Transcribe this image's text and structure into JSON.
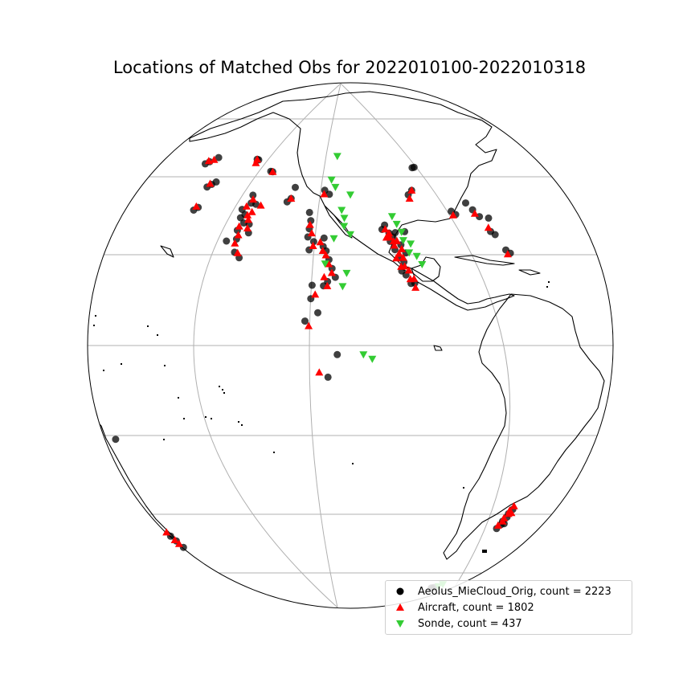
{
  "chart_data": {
    "type": "scatter",
    "title": "Locations of Matched Obs for 2022010100-2022010318",
    "projection": "orthographic",
    "center": {
      "lon": -90,
      "lat": 20
    },
    "graticule": {
      "parallels": [
        -60,
        -40,
        -20,
        0,
        20,
        40,
        60
      ],
      "meridians": [
        -120,
        -60
      ]
    },
    "legend_placement": "lower-right",
    "series": [
      {
        "name": "Aeolus_MieCloud_Orig, count = 2223",
        "marker": "circle",
        "color": "#000000",
        "points": [
          [
            -160,
            54
          ],
          [
            -159,
            55
          ],
          [
            -157,
            57
          ],
          [
            -148,
            50
          ],
          [
            -147,
            51
          ],
          [
            -146,
            52
          ],
          [
            -146,
            44
          ],
          [
            -145,
            45
          ],
          [
            -137,
            61
          ],
          [
            -136,
            61
          ],
          [
            -126,
            59
          ],
          [
            -125,
            59
          ],
          [
            -127,
            52
          ],
          [
            -126,
            50
          ],
          [
            -128,
            48
          ],
          [
            -127,
            46
          ],
          [
            -125,
            45
          ],
          [
            -126,
            43
          ],
          [
            -125,
            41
          ],
          [
            -128,
            40
          ],
          [
            -123,
            45
          ],
          [
            -122,
            43
          ],
          [
            -126,
            47
          ],
          [
            -124,
            50
          ],
          [
            -124,
            38
          ],
          [
            -122,
            37
          ],
          [
            -112,
            53
          ],
          [
            -113,
            52
          ],
          [
            -112,
            56
          ],
          [
            -100,
            56
          ],
          [
            -98,
            55
          ],
          [
            -104,
            50
          ],
          [
            -103,
            48
          ],
          [
            -103,
            46
          ],
          [
            -103,
            44
          ],
          [
            -102,
            41
          ],
          [
            -101,
            43
          ],
          [
            -98,
            44
          ],
          [
            -98,
            42
          ],
          [
            -97,
            41
          ],
          [
            -96,
            39
          ],
          [
            -95,
            37
          ],
          [
            -94,
            35
          ],
          [
            -96,
            34
          ],
          [
            -97,
            33
          ],
          [
            -100,
            30
          ],
          [
            -98,
            27
          ],
          [
            -100,
            33
          ],
          [
            -101,
            25
          ],
          [
            -93,
            18
          ],
          [
            -95,
            13
          ],
          [
            -78,
            45
          ],
          [
            -77,
            44
          ],
          [
            -78,
            43
          ],
          [
            -77,
            41
          ],
          [
            -76,
            39
          ],
          [
            -75,
            38
          ],
          [
            -76,
            36
          ],
          [
            -75,
            35
          ],
          [
            -74,
            33
          ],
          [
            -73,
            33
          ],
          [
            -74,
            40
          ],
          [
            -75,
            42
          ],
          [
            -80,
            46
          ],
          [
            -79,
            47
          ],
          [
            -76,
            45
          ],
          [
            -73,
            45
          ],
          [
            -68,
            54
          ],
          [
            -66,
            55
          ],
          [
            -55,
            48
          ],
          [
            -54,
            47
          ],
          [
            -48,
            49
          ],
          [
            -47,
            47
          ],
          [
            -46,
            45
          ],
          [
            -43,
            44
          ],
          [
            -45,
            41
          ],
          [
            -44,
            40
          ],
          [
            -42,
            35
          ],
          [
            -43,
            36
          ],
          [
            -61,
            61
          ],
          [
            -60,
            61
          ],
          [
            -47,
            -25
          ],
          [
            -48,
            -26
          ],
          [
            -48,
            -27
          ],
          [
            -49,
            -28
          ],
          [
            -49,
            -29
          ],
          [
            -50,
            -30
          ],
          [
            -48,
            -29
          ],
          [
            -60,
            -52
          ],
          [
            -59,
            -52
          ],
          [
            -157,
            -14
          ],
          [
            -155,
            -41
          ],
          [
            -153,
            -42
          ],
          [
            -152,
            -44
          ]
        ]
      },
      {
        "name": "Aircraft, count = 1802",
        "marker": "triangle-up",
        "color": "#ff0000",
        "points": [
          [
            -160,
            55
          ],
          [
            -158,
            56
          ],
          [
            -148,
            51
          ],
          [
            -146,
            45
          ],
          [
            -137,
            61
          ],
          [
            -136,
            60
          ],
          [
            -125,
            59
          ],
          [
            -126,
            51
          ],
          [
            -127,
            49
          ],
          [
            -125,
            47
          ],
          [
            -124,
            46
          ],
          [
            -126,
            44
          ],
          [
            -125,
            42
          ],
          [
            -123,
            44
          ],
          [
            -124,
            48
          ],
          [
            -122,
            50
          ],
          [
            -125,
            40
          ],
          [
            -123,
            38
          ],
          [
            -112,
            53
          ],
          [
            -100,
            55
          ],
          [
            -103,
            47
          ],
          [
            -102,
            45
          ],
          [
            -101,
            42
          ],
          [
            -99,
            43
          ],
          [
            -98,
            41
          ],
          [
            -97,
            40
          ],
          [
            -96,
            38
          ],
          [
            -95,
            36
          ],
          [
            -97,
            35
          ],
          [
            -96,
            33
          ],
          [
            -99,
            31
          ],
          [
            -100,
            24
          ],
          [
            -79,
            46
          ],
          [
            -78,
            44
          ],
          [
            -77,
            43
          ],
          [
            -77,
            42
          ],
          [
            -76,
            40
          ],
          [
            -75,
            39
          ],
          [
            -75,
            37
          ],
          [
            -74,
            36
          ],
          [
            -76,
            37
          ],
          [
            -77,
            39
          ],
          [
            -74,
            34
          ],
          [
            -73,
            34
          ],
          [
            -75,
            41
          ],
          [
            -76,
            43
          ],
          [
            -78,
            45
          ],
          [
            -79,
            44
          ],
          [
            -68,
            53
          ],
          [
            -66,
            55
          ],
          [
            -55,
            47
          ],
          [
            -47,
            46
          ],
          [
            -45,
            42
          ],
          [
            -43,
            35
          ],
          [
            -73,
            32
          ],
          [
            -47,
            -24
          ],
          [
            -48,
            -25
          ],
          [
            -48,
            -26
          ],
          [
            -49,
            -27
          ],
          [
            -49,
            -28
          ],
          [
            -50,
            -29
          ],
          [
            -47,
            -26
          ],
          [
            -156,
            -40
          ],
          [
            -154,
            -42
          ],
          [
            -153,
            -43
          ],
          [
            -97,
            14
          ]
        ]
      },
      {
        "name": "Sonde, count = 437",
        "marker": "triangle-down",
        "color": "#33cc33",
        "points": [
          [
            -97,
            66
          ],
          [
            -98,
            59
          ],
          [
            -96,
            57
          ],
          [
            -90,
            55
          ],
          [
            -93,
            51
          ],
          [
            -92,
            49
          ],
          [
            -92,
            47
          ],
          [
            -90,
            45
          ],
          [
            -95,
            44
          ],
          [
            -97,
            38
          ],
          [
            -91,
            36
          ],
          [
            -92,
            33
          ],
          [
            -87,
            18
          ],
          [
            -85,
            17
          ],
          [
            -76,
            49
          ],
          [
            -75,
            47
          ],
          [
            -74,
            45
          ],
          [
            -74,
            43
          ],
          [
            -72,
            42
          ],
          [
            -73,
            40
          ],
          [
            -71,
            39
          ],
          [
            -70,
            37
          ],
          [
            -57,
            -52
          ],
          [
            -56,
            -51
          ]
        ]
      }
    ]
  },
  "legend": {
    "items": [
      {
        "label": "Aeolus_MieCloud_Orig, count = 2223",
        "color": "#000000"
      },
      {
        "label": "Aircraft, count = 1802",
        "color": "#ff0000"
      },
      {
        "label": "Sonde, count = 437",
        "color": "#33cc33"
      }
    ]
  },
  "landmass_icons": [
    "north-america-outline",
    "south-america-outline",
    "pacific-islands"
  ]
}
